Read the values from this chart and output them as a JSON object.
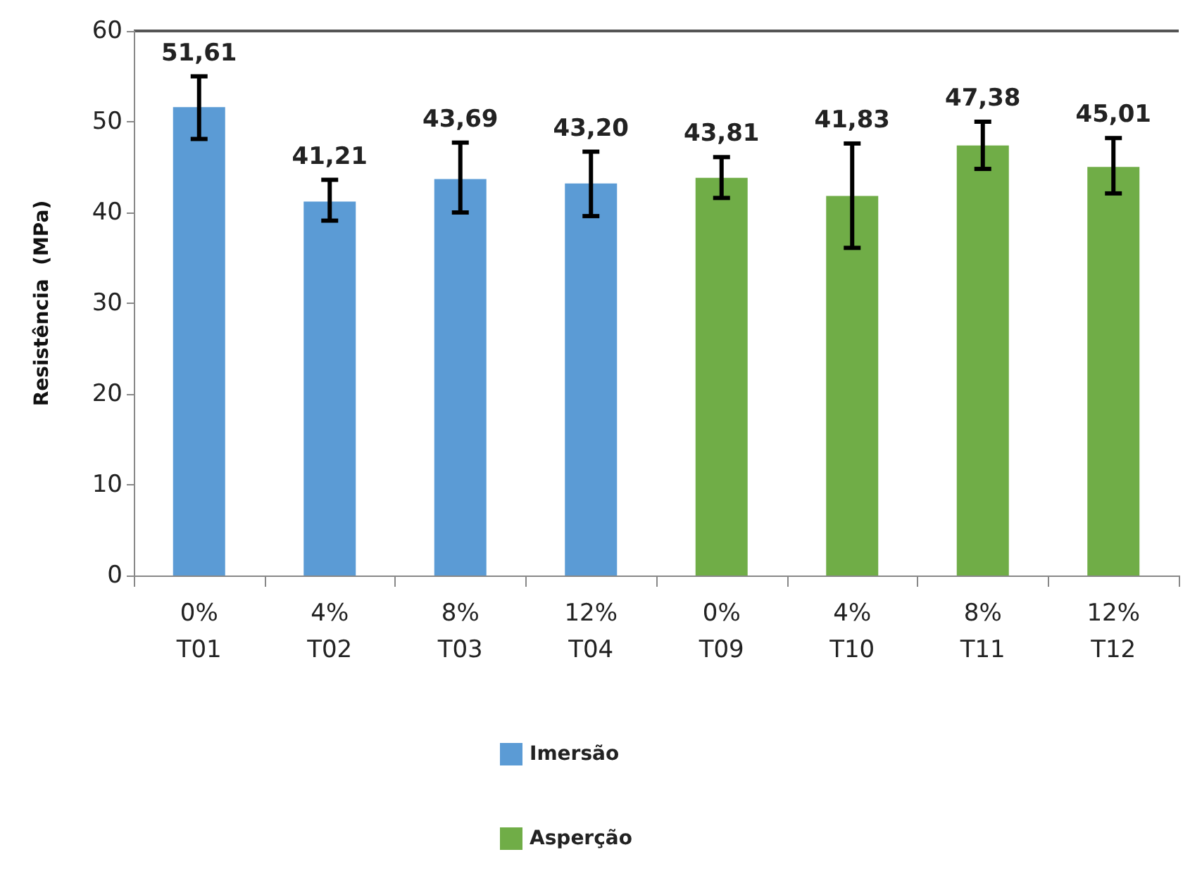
{
  "chart_data": {
    "type": "bar",
    "ylabel": "Resistência  (MPa)",
    "categories": [
      "0%\nT01",
      "4%\nT02",
      "8%\nT03",
      "12%\nT04",
      "0%\nT09",
      "4%\nT10",
      "8%\nT11",
      "12%\nT12"
    ],
    "series": [
      {
        "name": "Imersão",
        "color": "#5b9bd5",
        "values": [
          51.61,
          41.21,
          43.69,
          43.2,
          null,
          null,
          null,
          null
        ],
        "value_labels": [
          "51,61",
          "41,21",
          "43,69",
          "43,20",
          null,
          null,
          null,
          null
        ],
        "errors": [
          [
            48.1,
            55.0
          ],
          [
            39.1,
            43.6
          ],
          [
            40.0,
            47.7
          ],
          [
            39.6,
            46.7
          ],
          null,
          null,
          null,
          null
        ]
      },
      {
        "name": "Asperção",
        "color": "#70ad47",
        "values": [
          null,
          null,
          null,
          null,
          43.81,
          41.83,
          47.38,
          45.01
        ],
        "value_labels": [
          null,
          null,
          null,
          null,
          "43,81",
          "41,83",
          "47,38",
          "45,01"
        ],
        "errors": [
          null,
          null,
          null,
          null,
          [
            41.6,
            46.1
          ],
          [
            36.1,
            47.6
          ],
          [
            44.8,
            50.0
          ],
          [
            42.1,
            48.2
          ]
        ]
      }
    ],
    "ylim": [
      0,
      60
    ],
    "yticks": [
      0,
      10,
      20,
      30,
      40,
      50,
      60
    ],
    "grid": false,
    "legend": "bottom"
  }
}
